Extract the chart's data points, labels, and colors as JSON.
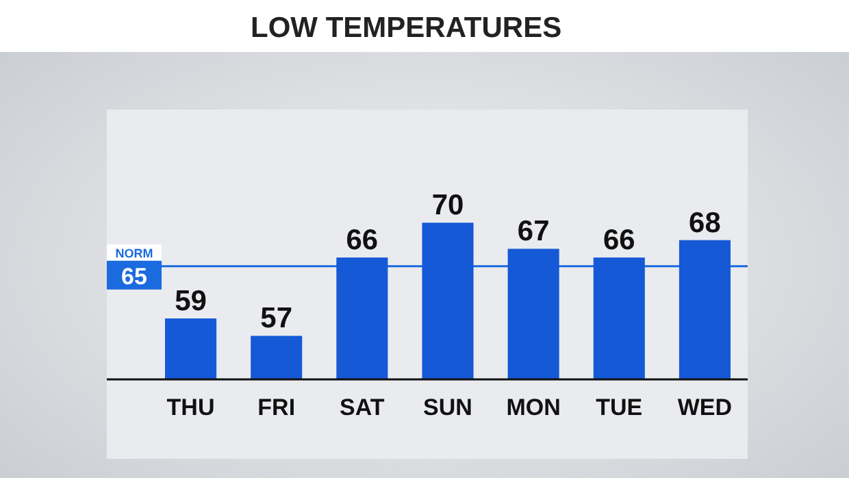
{
  "chart_data": {
    "type": "bar",
    "title": "LOW TEMPERATURES",
    "categories": [
      "THU",
      "FRI",
      "SAT",
      "SUN",
      "MON",
      "TUE",
      "WED"
    ],
    "values": [
      59,
      57,
      66,
      70,
      67,
      66,
      68
    ],
    "color": "#1559d6",
    "ylim": [
      52,
      83
    ],
    "data_labels": true,
    "ref_lines": [
      {
        "axis": "y",
        "value": 65,
        "label": "NORM 65",
        "color": "#1a6ae0"
      }
    ]
  }
}
